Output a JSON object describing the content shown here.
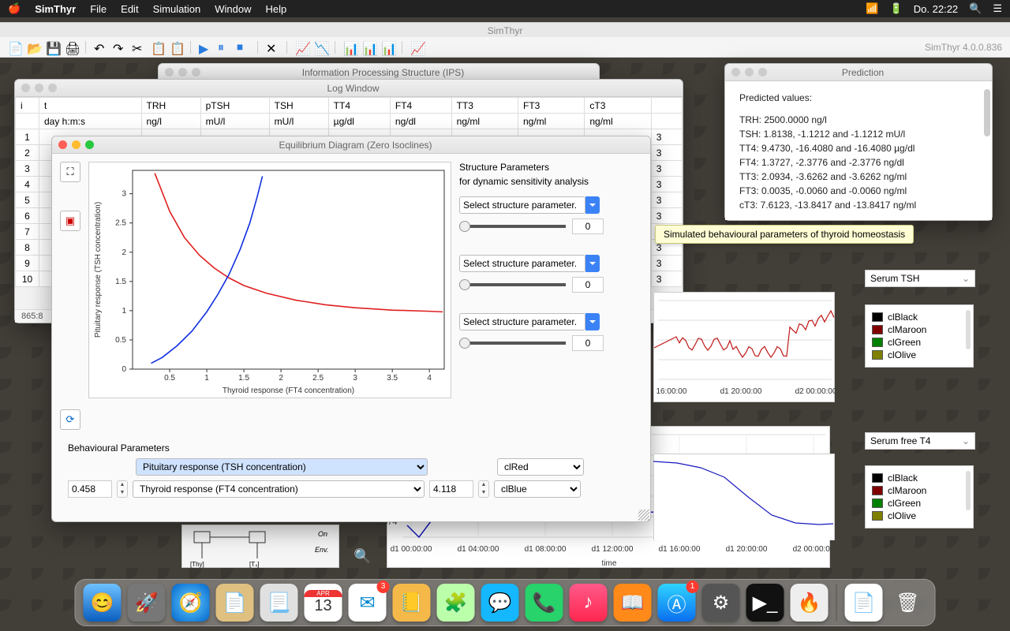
{
  "menubar": {
    "app": "SimThyr",
    "items": [
      "File",
      "Edit",
      "Simulation",
      "Window",
      "Help"
    ],
    "clock": "Do. 22:22"
  },
  "app_window": {
    "title": "SimThyr",
    "version": "SimThyr 4.0.0.836"
  },
  "ips_window": {
    "title": "Information Processing Structure (IPS)"
  },
  "log_window": {
    "title": "Log Window",
    "columns": [
      "i",
      "t",
      "TRH",
      "pTSH",
      "TSH",
      "TT4",
      "FT4",
      "TT3",
      "FT3",
      "cT3"
    ],
    "units": [
      "",
      "day h:m:s",
      "ng/l",
      "mU/l",
      "mU/l",
      "µg/dl",
      "ng/dl",
      "ng/ml",
      "ng/ml",
      "ng/ml"
    ],
    "rows": [
      1,
      2,
      3,
      4,
      5,
      6,
      7,
      8,
      9,
      10
    ],
    "trailing_col": "3",
    "footer": "865:8"
  },
  "tooltip": "Simulated behavioural parameters of thyroid homeostasis",
  "pred_window": {
    "title": "Prediction",
    "header": "Predicted values:",
    "lines": [
      "TRH: 2500.0000 ng/l",
      "TSH: 1.8138, -1.1212 and -1.1212 mU/l",
      "TT4: 9.4730, -16.4080 and -16.4080 µg/dl",
      "FT4: 1.3727, -2.3776 and -2.3776 ng/dl",
      "TT3: 2.0934, -3.6262 and -3.6262 ng/ml",
      "FT3: 0.0035, -0.0060 and -0.0060 ng/ml",
      "cT3: 7.6123, -13.8417 and -13.8417 ng/ml"
    ]
  },
  "eq_window": {
    "title": "Equilibrium Diagram (Zero Isoclines)",
    "chart": {
      "xlabel": "Thyroid response (FT4 concentration)",
      "ylabel": "Pituitary response (TSH concentration)",
      "xlim": [
        0,
        4.2
      ],
      "ylim": [
        0,
        3.4
      ],
      "xticks": [
        0.5,
        1,
        1.5,
        2,
        2.5,
        3,
        3.5,
        4
      ],
      "yticks": [
        0,
        0.5,
        1,
        1.5,
        2,
        2.5,
        3
      ],
      "curves": {
        "red": {
          "color": "#e02020",
          "pts": [
            [
              0.3,
              3.35
            ],
            [
              0.5,
              2.7
            ],
            [
              0.7,
              2.25
            ],
            [
              0.9,
              1.95
            ],
            [
              1.1,
              1.73
            ],
            [
              1.3,
              1.56
            ],
            [
              1.5,
              1.43
            ],
            [
              1.8,
              1.3
            ],
            [
              2.2,
              1.18
            ],
            [
              2.6,
              1.1
            ],
            [
              3.0,
              1.05
            ],
            [
              3.5,
              1.01
            ],
            [
              4.0,
              0.99
            ],
            [
              4.18,
              0.98
            ]
          ]
        },
        "blue": {
          "color": "#1030e0",
          "pts": [
            [
              0.25,
              0.1
            ],
            [
              0.4,
              0.2
            ],
            [
              0.6,
              0.4
            ],
            [
              0.8,
              0.65
            ],
            [
              1.0,
              0.98
            ],
            [
              1.15,
              1.28
            ],
            [
              1.3,
              1.62
            ],
            [
              1.45,
              2.05
            ],
            [
              1.58,
              2.5
            ],
            [
              1.68,
              2.95
            ],
            [
              1.75,
              3.3
            ]
          ]
        }
      }
    },
    "struct_params": {
      "title": "Structure Parameters",
      "subtitle": "for dynamic sensitivity analysis",
      "combo_label": "Select structure parameter.",
      "value": "0"
    },
    "behav": {
      "title": "Behavioural Parameters",
      "pituitary": "Pituitary response (TSH concentration)",
      "thyroid": "Thyroid response (FT4 concentration)",
      "x_val": "0.458",
      "y_val": "4.118",
      "color1": "clRed",
      "color2": "clBlue"
    }
  },
  "ts_charts": {
    "top": {
      "label": "Serum TSH",
      "xticks": [
        "d1 16:00:00",
        "d1 20:00:00",
        "d2 00:00:00"
      ],
      "color": "#c01818"
    },
    "bottom": {
      "label": "Serum free T4",
      "xlabel": "time",
      "xticks": [
        "d1 00:00:00",
        "d1 04:00:00",
        "d1 08:00:00",
        "d1 12:00:00",
        "d1 16:00:00",
        "d1 20:00:00",
        "d2 00:00:00"
      ],
      "color": "#1818c0",
      "y_sample": "1.374"
    },
    "legend": [
      {
        "name": "clBlack",
        "color": "#000000"
      },
      {
        "name": "clMaroon",
        "color": "#800000"
      },
      {
        "name": "clGreen",
        "color": "#008000"
      },
      {
        "name": "clOlive",
        "color": "#808000"
      }
    ]
  },
  "dock": {
    "badges": {
      "mail": "3",
      "appstore": "1"
    },
    "calendar": {
      "month": "APR",
      "day": "13"
    }
  }
}
